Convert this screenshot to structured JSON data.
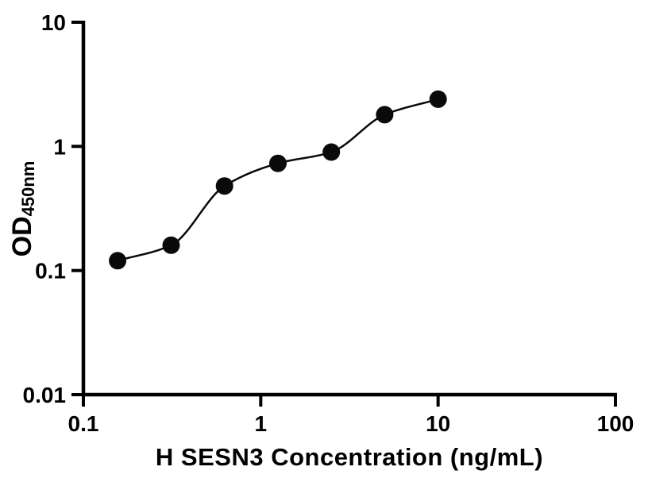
{
  "figure": {
    "background_color": "#ffffff",
    "foreground_color": "#000000"
  },
  "chart_data": {
    "type": "scatter",
    "title": "",
    "xlabel": "H SESN3 Concentration (ng/mL)",
    "ylabel_main": "OD",
    "ylabel_sub": "450nm",
    "xscale": "log",
    "yscale": "log",
    "xlim": [
      0.1,
      100
    ],
    "ylim": [
      0.01,
      10
    ],
    "grid": false,
    "legend": "none",
    "x": [
      0.156,
      0.3125,
      0.625,
      1.25,
      2.5,
      5,
      10
    ],
    "y": [
      0.12,
      0.16,
      0.48,
      0.73,
      0.9,
      1.8,
      2.4
    ],
    "fit_line": true,
    "x_ticks": [
      {
        "value": 0.1,
        "label": "0.1"
      },
      {
        "value": 1,
        "label": "1"
      },
      {
        "value": 10,
        "label": "10"
      },
      {
        "value": 100,
        "label": "100"
      }
    ],
    "y_ticks": [
      {
        "value": 0.01,
        "label": "0.01"
      },
      {
        "value": 0.1,
        "label": "0.1"
      },
      {
        "value": 1,
        "label": "1"
      },
      {
        "value": 10,
        "label": "10"
      }
    ],
    "marker_color": "#0a0a0a",
    "line_color": "#0a0a0a",
    "axis_color": "#000000",
    "marker_radius": 11
  }
}
